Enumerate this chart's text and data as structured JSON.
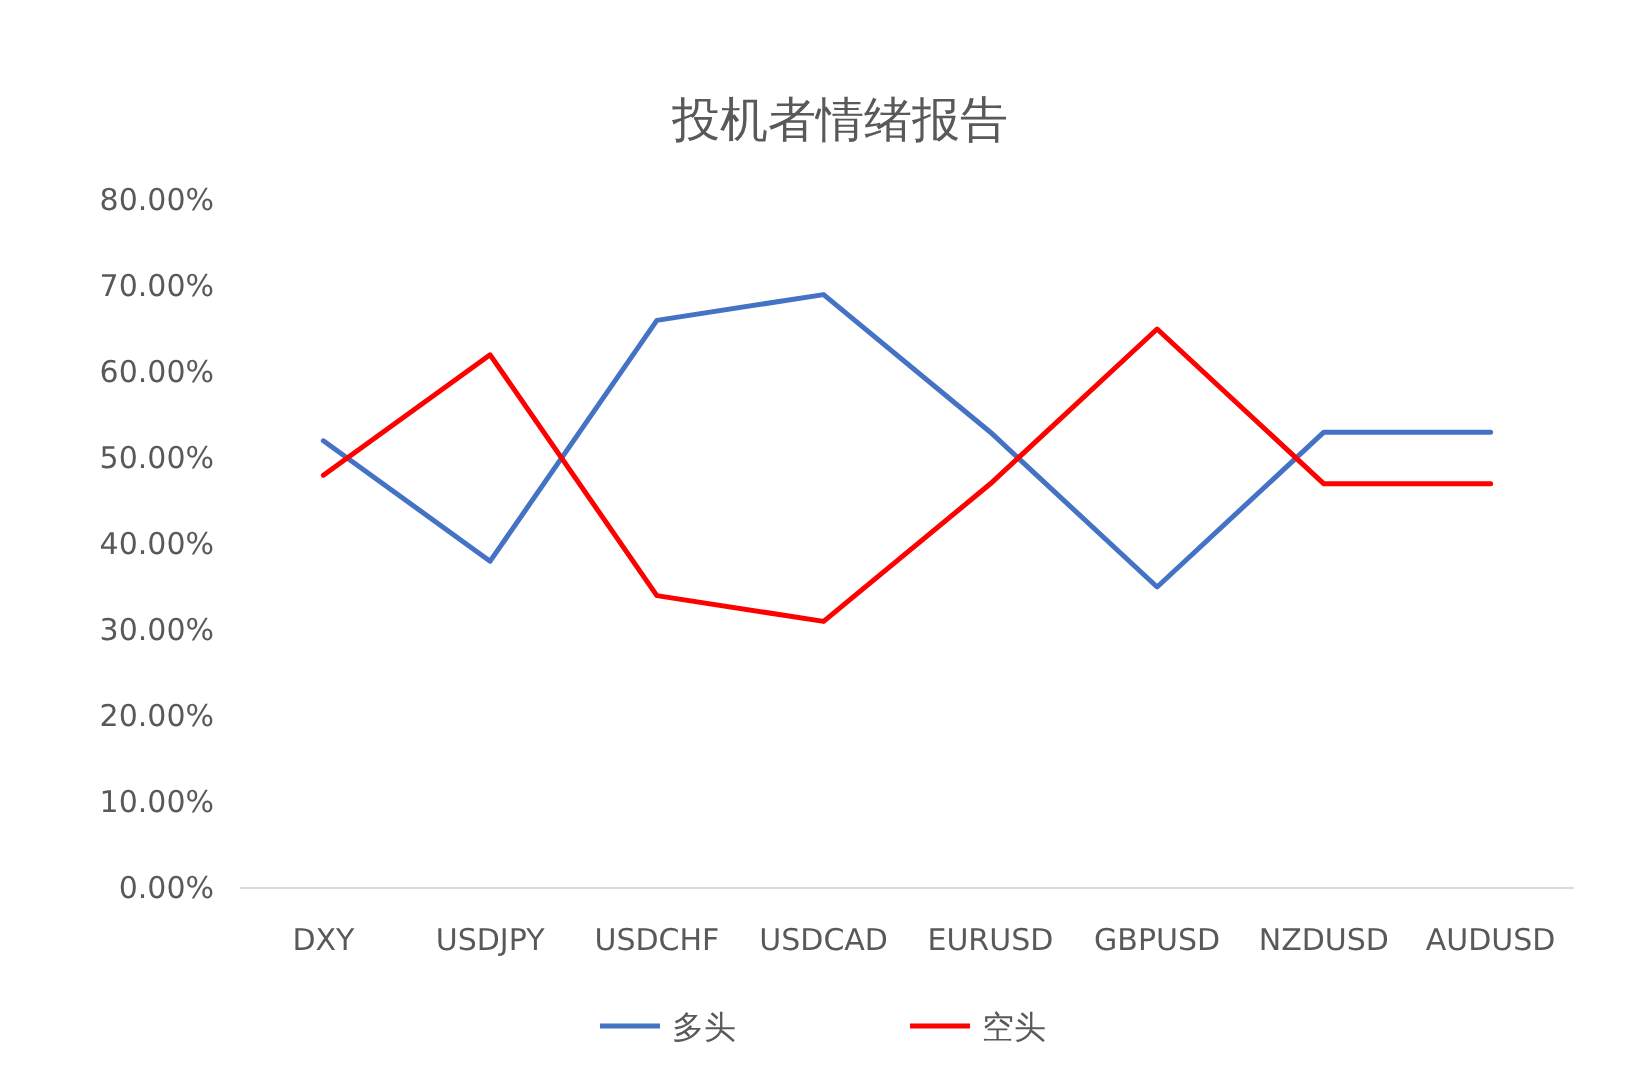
{
  "chart_data": {
    "type": "line",
    "title": "投机者情绪报告",
    "categories": [
      "DXY",
      "USDJPY",
      "USDCHF",
      "USDCAD",
      "EURUSD",
      "GBPUSD",
      "NZDUSD",
      "AUDUSD"
    ],
    "series": [
      {
        "name": "多头",
        "color": "#4472c4",
        "values": [
          52,
          38,
          66,
          69,
          53,
          35,
          53,
          53
        ]
      },
      {
        "name": "空头",
        "color": "#ff0000",
        "values": [
          48,
          62,
          34,
          31,
          47,
          65,
          47,
          47
        ]
      }
    ],
    "ylim": [
      0,
      80
    ],
    "yticks": [
      {
        "value": 0,
        "label": "0.00%"
      },
      {
        "value": 10,
        "label": "10.00%"
      },
      {
        "value": 20,
        "label": "20.00%"
      },
      {
        "value": 30,
        "label": "30.00%"
      },
      {
        "value": 40,
        "label": "40.00%"
      },
      {
        "value": 50,
        "label": "50.00%"
      },
      {
        "value": 60,
        "label": "60.00%"
      },
      {
        "value": 70,
        "label": "70.00%"
      },
      {
        "value": 80,
        "label": "80.00%"
      }
    ],
    "legend": "bottom"
  }
}
